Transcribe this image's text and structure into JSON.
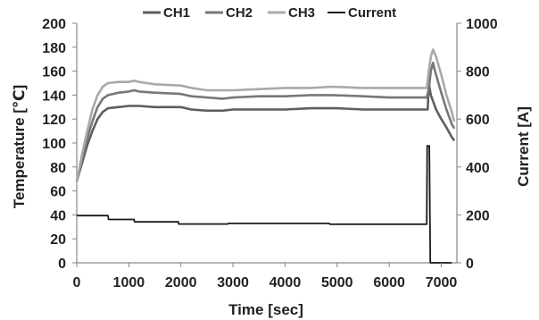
{
  "chart_data": {
    "type": "line",
    "title": "",
    "xlabel": "Time [sec]",
    "ylabel": "Temperature [℃]",
    "y2label": "Current [A]",
    "xlim": [
      0,
      7300
    ],
    "ylim": [
      0,
      200
    ],
    "y2lim": [
      0,
      1000
    ],
    "x_ticks": [
      0,
      1000,
      2000,
      3000,
      4000,
      5000,
      6000,
      7000
    ],
    "y_ticks": [
      0,
      20,
      40,
      60,
      80,
      100,
      120,
      140,
      160,
      180,
      200
    ],
    "y2_ticks": [
      0,
      200,
      400,
      600,
      800,
      1000
    ],
    "grid": false,
    "legend_position": "top",
    "series": [
      {
        "name": "CH1",
        "axis": "left",
        "color": "#5e5e5e",
        "points": [
          [
            0,
            68
          ],
          [
            100,
            83
          ],
          [
            200,
            98
          ],
          [
            300,
            110
          ],
          [
            400,
            120
          ],
          [
            500,
            126
          ],
          [
            600,
            129
          ],
          [
            800,
            130
          ],
          [
            1000,
            131
          ],
          [
            1100,
            131
          ],
          [
            1200,
            131
          ],
          [
            1500,
            130
          ],
          [
            2000,
            130
          ],
          [
            2200,
            128
          ],
          [
            2500,
            127
          ],
          [
            2800,
            127
          ],
          [
            3000,
            128
          ],
          [
            3500,
            128
          ],
          [
            4000,
            128
          ],
          [
            4500,
            129
          ],
          [
            5000,
            129
          ],
          [
            5500,
            128
          ],
          [
            6000,
            128
          ],
          [
            6500,
            128
          ],
          [
            6720,
            128
          ],
          [
            6740,
            128
          ],
          [
            6760,
            150
          ],
          [
            6800,
            140
          ],
          [
            6900,
            128
          ],
          [
            7000,
            120
          ],
          [
            7100,
            113
          ],
          [
            7200,
            105
          ],
          [
            7250,
            102
          ]
        ]
      },
      {
        "name": "CH2",
        "axis": "left",
        "color": "#777777",
        "points": [
          [
            0,
            68
          ],
          [
            100,
            86
          ],
          [
            200,
            104
          ],
          [
            300,
            118
          ],
          [
            400,
            130
          ],
          [
            500,
            137
          ],
          [
            600,
            140
          ],
          [
            800,
            142
          ],
          [
            1000,
            143
          ],
          [
            1100,
            144
          ],
          [
            1200,
            143
          ],
          [
            1500,
            142
          ],
          [
            2000,
            141
          ],
          [
            2200,
            139
          ],
          [
            2500,
            138
          ],
          [
            2800,
            137
          ],
          [
            3000,
            138
          ],
          [
            3500,
            139
          ],
          [
            4000,
            139
          ],
          [
            4500,
            140
          ],
          [
            4900,
            140
          ],
          [
            5500,
            139
          ],
          [
            6000,
            138
          ],
          [
            6500,
            138
          ],
          [
            6720,
            138
          ],
          [
            6760,
            145
          ],
          [
            6800,
            160
          ],
          [
            6840,
            167
          ],
          [
            6880,
            160
          ],
          [
            7000,
            142
          ],
          [
            7100,
            128
          ],
          [
            7200,
            116
          ],
          [
            7250,
            112
          ]
        ]
      },
      {
        "name": "CH3",
        "axis": "left",
        "color": "#a9a9a9",
        "points": [
          [
            0,
            68
          ],
          [
            100,
            90
          ],
          [
            200,
            110
          ],
          [
            300,
            128
          ],
          [
            400,
            140
          ],
          [
            500,
            147
          ],
          [
            600,
            150
          ],
          [
            800,
            151
          ],
          [
            1000,
            151
          ],
          [
            1100,
            152
          ],
          [
            1200,
            151
          ],
          [
            1500,
            149
          ],
          [
            2000,
            148
          ],
          [
            2200,
            146
          ],
          [
            2500,
            144
          ],
          [
            2800,
            144
          ],
          [
            3000,
            144
          ],
          [
            3500,
            145
          ],
          [
            4000,
            146
          ],
          [
            4500,
            146
          ],
          [
            4900,
            147
          ],
          [
            5500,
            146
          ],
          [
            6000,
            146
          ],
          [
            6500,
            146
          ],
          [
            6720,
            146
          ],
          [
            6760,
            160
          ],
          [
            6800,
            172
          ],
          [
            6840,
            178
          ],
          [
            6900,
            172
          ],
          [
            7000,
            157
          ],
          [
            7100,
            140
          ],
          [
            7200,
            126
          ],
          [
            7250,
            118
          ]
        ]
      },
      {
        "name": "Current",
        "axis": "right",
        "color": "#1a1a1a",
        "points": [
          [
            0,
            197
          ],
          [
            600,
            197
          ],
          [
            610,
            181
          ],
          [
            1100,
            181
          ],
          [
            1110,
            171
          ],
          [
            1950,
            171
          ],
          [
            1960,
            162
          ],
          [
            2900,
            162
          ],
          [
            2910,
            164
          ],
          [
            4850,
            164
          ],
          [
            4860,
            161
          ],
          [
            6720,
            161
          ],
          [
            6730,
            488
          ],
          [
            6770,
            488
          ],
          [
            6790,
            0
          ],
          [
            7200,
            0
          ]
        ]
      }
    ]
  }
}
